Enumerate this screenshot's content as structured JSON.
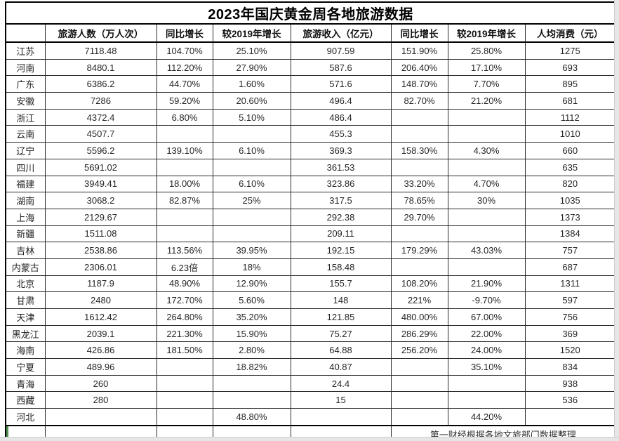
{
  "title": "2023年国庆黄金周各地旅游数据",
  "table": {
    "headers": [
      "",
      "旅游人数（万人次）",
      "同比增长",
      "较2019年增长",
      "旅游收入（亿元）",
      "同比增长",
      "较2019年增长",
      "人均消费（元）"
    ],
    "rows": [
      [
        "江苏",
        "7118.48",
        "104.70%",
        "25.10%",
        "907.59",
        "151.90%",
        "25.80%",
        "1275"
      ],
      [
        "河南",
        "8480.1",
        "112.20%",
        "27.90%",
        "587.6",
        "206.40%",
        "17.10%",
        "693"
      ],
      [
        "广东",
        "6386.2",
        "44.70%",
        "1.60%",
        "571.6",
        "148.70%",
        "7.70%",
        "895"
      ],
      [
        "安徽",
        "7286",
        "59.20%",
        "20.60%",
        "496.4",
        "82.70%",
        "21.20%",
        "681"
      ],
      [
        "浙江",
        "4372.4",
        "6.80%",
        "5.10%",
        "486.4",
        "",
        "",
        "1112"
      ],
      [
        "云南",
        "4507.7",
        "",
        "",
        "455.3",
        "",
        "",
        "1010"
      ],
      [
        "辽宁",
        "5596.2",
        "139.10%",
        "6.10%",
        "369.3",
        "158.30%",
        "4.30%",
        "660"
      ],
      [
        "四川",
        "5691.02",
        "",
        "",
        "361.53",
        "",
        "",
        "635"
      ],
      [
        "福建",
        "3949.41",
        "18.00%",
        "6.10%",
        "323.86",
        "33.20%",
        "4.70%",
        "820"
      ],
      [
        "湖南",
        "3068.2",
        "82.87%",
        "25%",
        "317.5",
        "78.65%",
        "30%",
        "1035"
      ],
      [
        "上海",
        "2129.67",
        "",
        "",
        "292.38",
        "29.70%",
        "",
        "1373"
      ],
      [
        "新疆",
        "1511.08",
        "",
        "",
        "209.11",
        "",
        "",
        "1384"
      ],
      [
        "吉林",
        "2538.86",
        "113.56%",
        "39.95%",
        "192.15",
        "179.29%",
        "43.03%",
        "757"
      ],
      [
        "内蒙古",
        "2306.01",
        "6.23倍",
        "18%",
        "158.48",
        "",
        "",
        "687"
      ],
      [
        "北京",
        "1187.9",
        "48.90%",
        "12.90%",
        "155.7",
        "108.20%",
        "21.90%",
        "1311"
      ],
      [
        "甘肃",
        "2480",
        "172.70%",
        "5.60%",
        "148",
        "221%",
        "-9.70%",
        "597"
      ],
      [
        "天津",
        "1612.42",
        "264.80%",
        "35.20%",
        "121.85",
        "480.00%",
        "67.00%",
        "756"
      ],
      [
        "黑龙江",
        "2039.1",
        "221.30%",
        "15.90%",
        "75.27",
        "286.29%",
        "22.00%",
        "369"
      ],
      [
        "海南",
        "426.86",
        "181.50%",
        "2.80%",
        "64.88",
        "256.20%",
        "24.00%",
        "1520"
      ],
      [
        "宁夏",
        "489.96",
        "",
        "18.82%",
        "40.87",
        "",
        "35.10%",
        "834"
      ],
      [
        "青海",
        "260",
        "",
        "",
        "24.4",
        "",
        "",
        "938"
      ],
      [
        "西藏",
        "280",
        "",
        "",
        "15",
        "",
        "",
        "536"
      ],
      [
        "河北",
        "",
        "",
        "48.80%",
        "",
        "",
        "44.20%",
        ""
      ]
    ],
    "footer_note": "第一财经根据各地文旅部门数据整理"
  },
  "colors": {
    "cursor_green": "#559255",
    "border_black": "#000000",
    "edge_gray": "#e6e6e6"
  }
}
